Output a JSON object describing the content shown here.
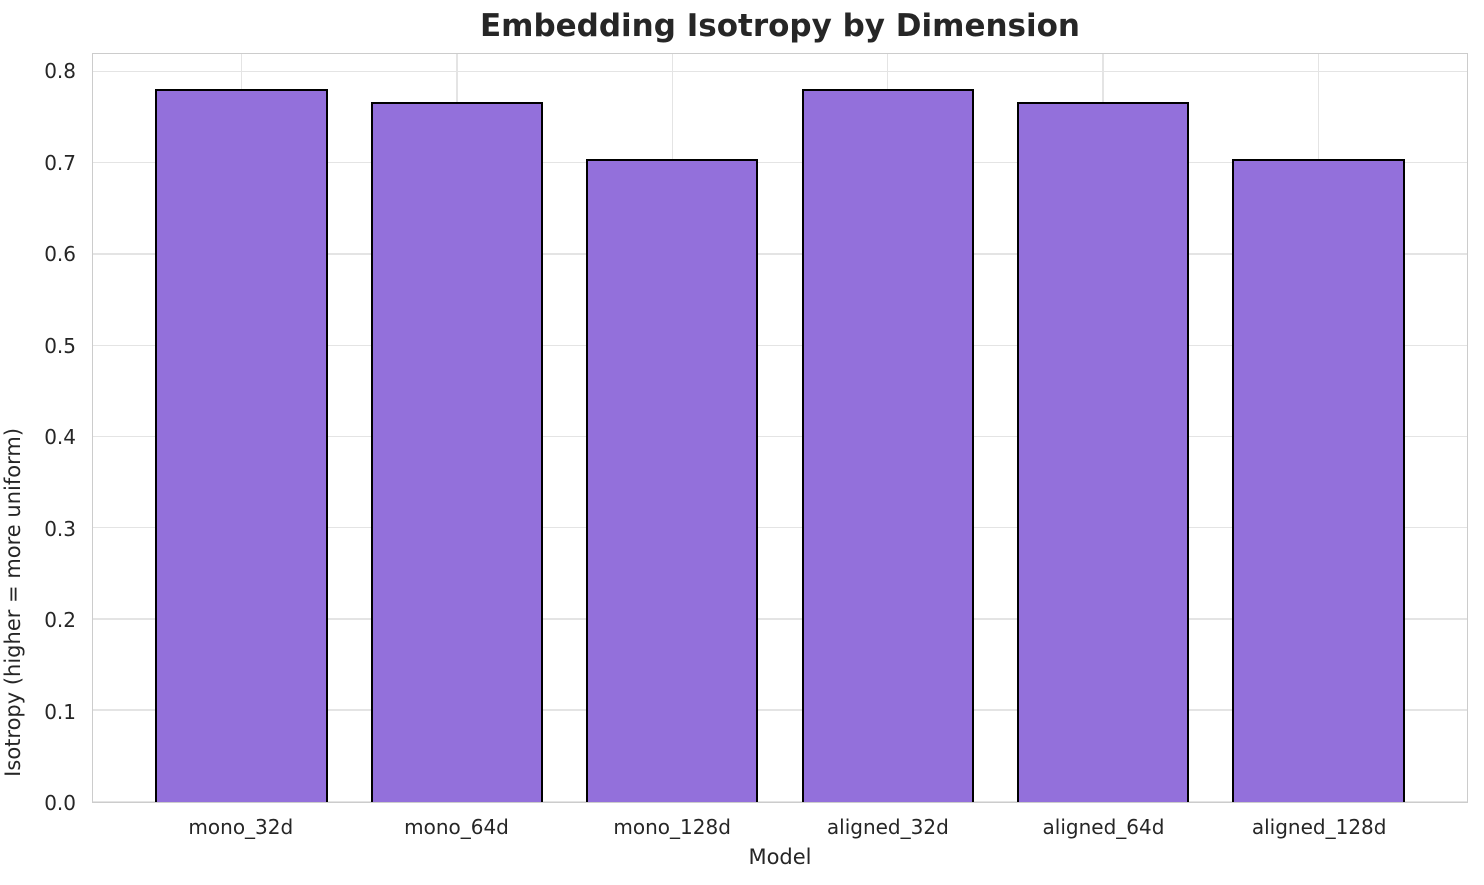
{
  "chart_data": {
    "type": "bar",
    "title": "Embedding Isotropy by Dimension",
    "xlabel": "Model",
    "ylabel": "Isotropy (higher = more uniform)",
    "categories": [
      "mono_32d",
      "mono_64d",
      "mono_128d",
      "aligned_32d",
      "aligned_64d",
      "aligned_128d"
    ],
    "values": [
      0.782,
      0.767,
      0.705,
      0.782,
      0.767,
      0.705
    ],
    "yticks": [
      0.0,
      0.1,
      0.2,
      0.3,
      0.4,
      0.5,
      0.6,
      0.7,
      0.8
    ],
    "ytick_labels": [
      "0.0",
      "0.1",
      "0.2",
      "0.3",
      "0.4",
      "0.5",
      "0.6",
      "0.7",
      "0.8"
    ],
    "ylim": [
      0,
      0.82
    ],
    "xlim": [
      -0.69,
      5.69
    ],
    "bar_width": 0.8,
    "grid": true,
    "legend": "none",
    "bar_color": "#9370DB",
    "bar_edge_color": "#000000",
    "grid_color": "#e4e4e4",
    "spine_color": "#cccccc",
    "text_color": "#262626"
  }
}
